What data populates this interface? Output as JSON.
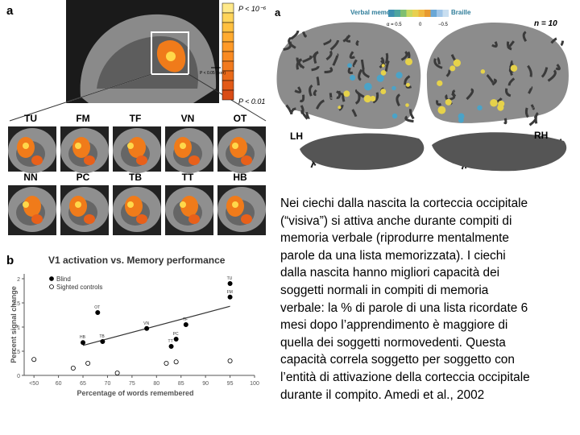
{
  "panel_a": {
    "label": "a",
    "p_top": "P < 10⁻⁶",
    "p_mid": "P < 0.05 (corr)",
    "p_bottom": "P < 0.01",
    "subjects": [
      "TU",
      "FM",
      "TF",
      "VN",
      "OT",
      "NN",
      "PC",
      "TB",
      "TT",
      "HB"
    ]
  },
  "panel_a2": {
    "label": "a",
    "legend_left": "Verbal memory",
    "legend_right": "Braille",
    "scale_labels": [
      "α = 0.5",
      "0",
      "−0.5"
    ],
    "n": "n = 10",
    "left": "LH",
    "right": "RH"
  },
  "chart_data": {
    "type": "scatter",
    "panel_label": "b",
    "title": "V1 activation vs. Memory performance",
    "x_label": "Percentage of words remembered",
    "y_label": "Percent signal change",
    "xlim": [
      53,
      100
    ],
    "ylim": [
      0,
      2.1
    ],
    "xticks": [
      {
        "value": 55,
        "label": "<50"
      },
      60,
      65,
      70,
      75,
      80,
      85,
      90,
      95,
      100
    ],
    "yticks": [
      0,
      0.5,
      1,
      1.5,
      2
    ],
    "series": [
      {
        "name": "Blind",
        "color": "#000000",
        "x": [
          65,
          68,
          69,
          78,
          83,
          84,
          86,
          95,
          95
        ],
        "values": [
          0.68,
          1.3,
          0.7,
          0.97,
          0.6,
          0.75,
          1.05,
          1.62,
          1.9
        ],
        "point_labels": [
          "HB",
          "OT",
          "TB",
          "VN",
          "TT",
          "PC",
          "TF",
          "FM",
          "TU"
        ]
      },
      {
        "name": "Sighted controls",
        "color": "#ffffff",
        "x": [
          55,
          63,
          66,
          72,
          82,
          84,
          95
        ],
        "values": [
          0.33,
          0.15,
          0.25,
          0.05,
          0.25,
          0.28,
          0.3
        ]
      }
    ],
    "trend": {
      "x": [
        65,
        95
      ],
      "values": [
        0.62,
        1.43
      ]
    }
  },
  "text": {
    "lines": [
      "Nei ciechi dalla nascita la corteccia occipitale",
      "(“visiva”) si attiva anche durante compiti di",
      "memoria verbale (riprodurre mentalmente",
      "parole da una lista memorizzata). I ciechi",
      "dalla nascita hanno migliori capacità dei",
      "soggetti normali in compiti di memoria",
      "verbale: la % di parole di una lista ricordate 6",
      "mesi dopo l’apprendimento è maggiore di",
      "quella dei soggetti normovedenti. Questa",
      "capacità correla soggetto per soggetto con",
      "l’entità di attivazione della corteccia occipitale",
      "durante il compito. Amedi et al., 2002"
    ]
  }
}
